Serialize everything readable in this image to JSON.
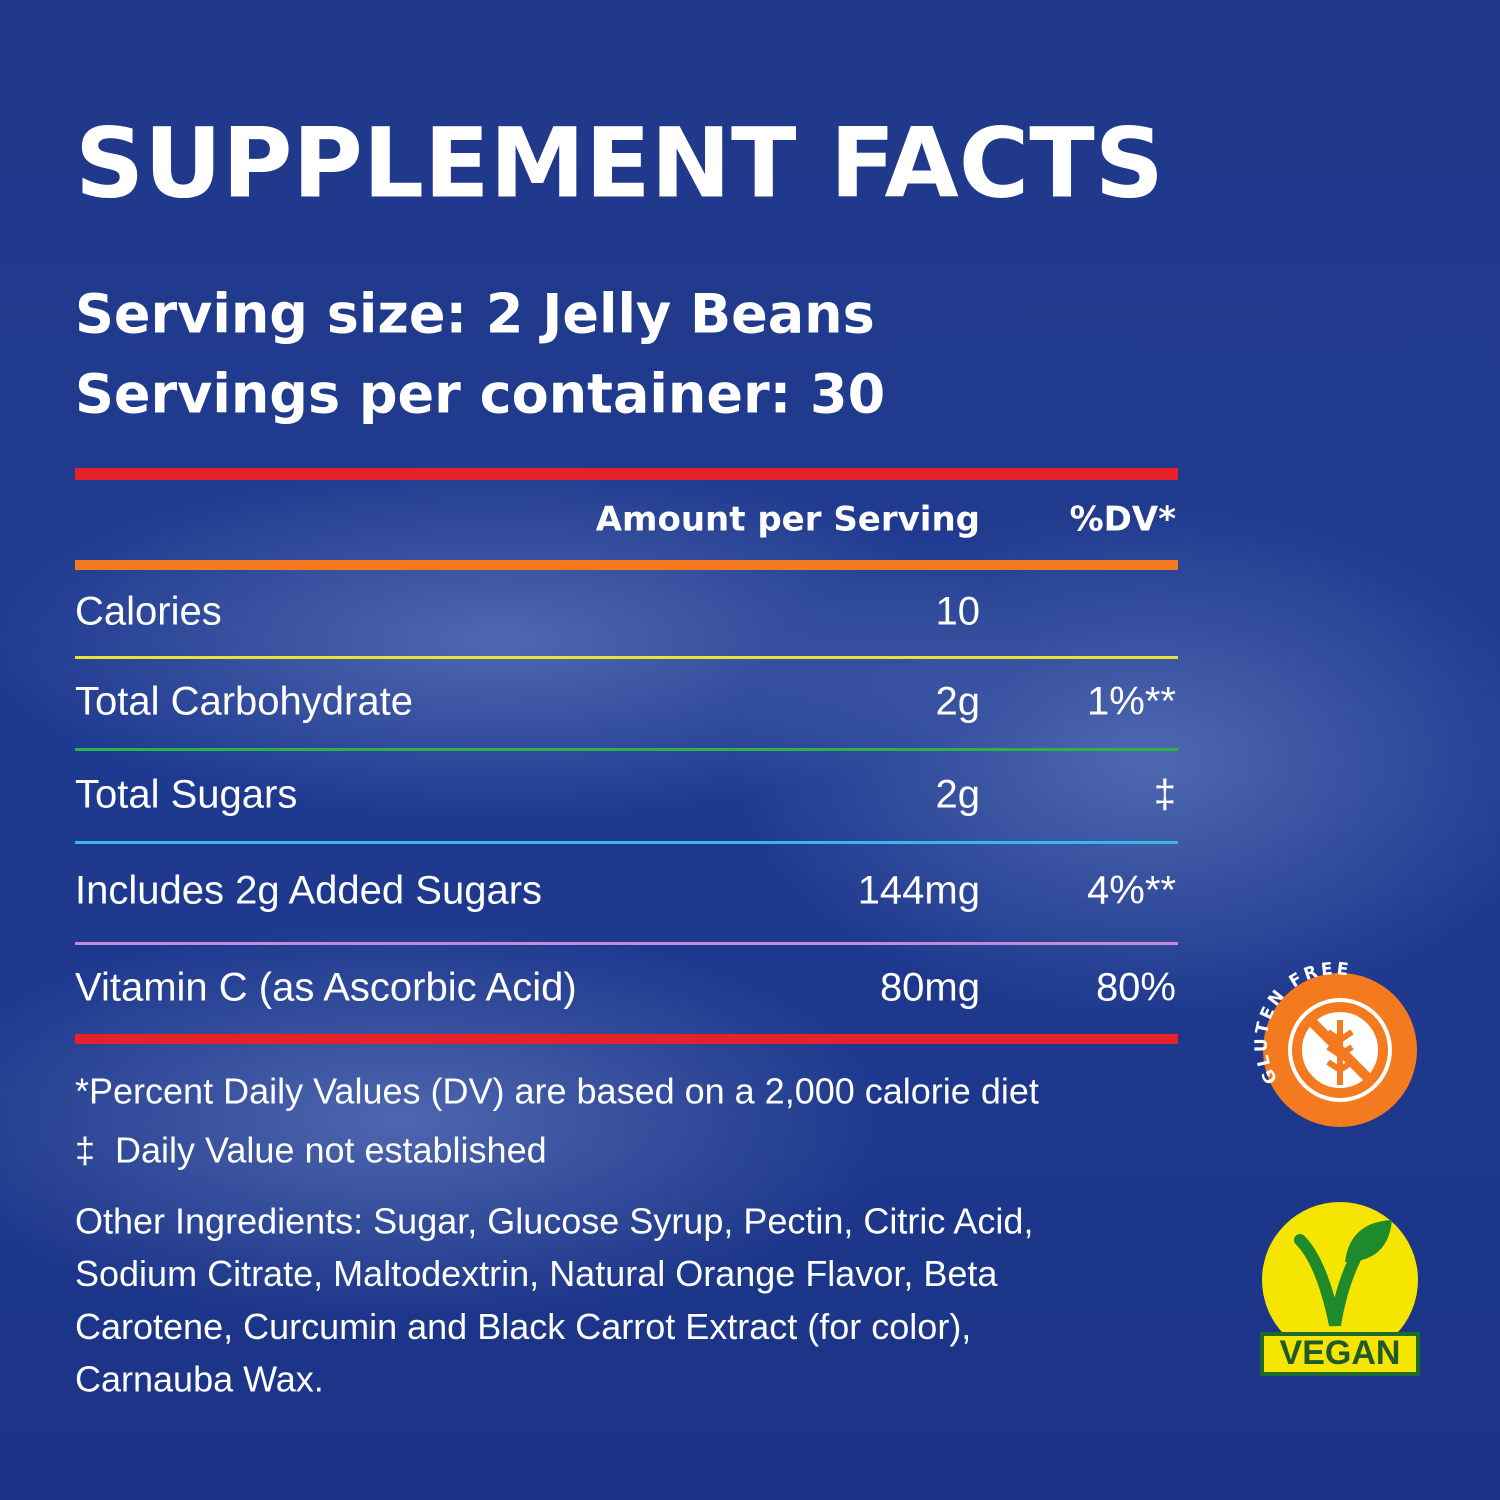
{
  "title": "SUPPLEMENT FACTS",
  "serving_size": "Serving size: 2 Jelly Beans",
  "servings_per_container": "Servings per container: 30",
  "table": {
    "header": {
      "amount": "Amount per Serving",
      "dv": "%DV*"
    },
    "rows": [
      {
        "name": "Calories",
        "amount": "10"
      },
      {
        "name": "Total Carbohydrate",
        "amount": "2g",
        "dv": "1%**"
      },
      {
        "name": "Total Sugars",
        "amount": "2g",
        "dv": "‡"
      },
      {
        "name": "Includes 2g Added Sugars",
        "amount": "144mg",
        "dv": "4%**"
      },
      {
        "name": "Vitamin C (as Ascorbic Acid)",
        "amount": "80mg",
        "dv": "80%"
      }
    ]
  },
  "footnotes": [
    "*Percent Daily Values (DV) are based on a 2,000 calorie diet",
    "‡  Daily Value not established"
  ],
  "ingredients": [
    "Other Ingredients: Sugar, Glucose Syrup, Pectin, Citric Acid,",
    "Sodium Citrate, Maltodextrin, Natural Orange Flavor, Beta",
    "Carotene, Curcumin and Black Carrot Extract (for color),",
    "Carnauba Wax."
  ],
  "badges": {
    "gluten_free": "GLUTEN FREE",
    "vegan": "VEGAN"
  }
}
